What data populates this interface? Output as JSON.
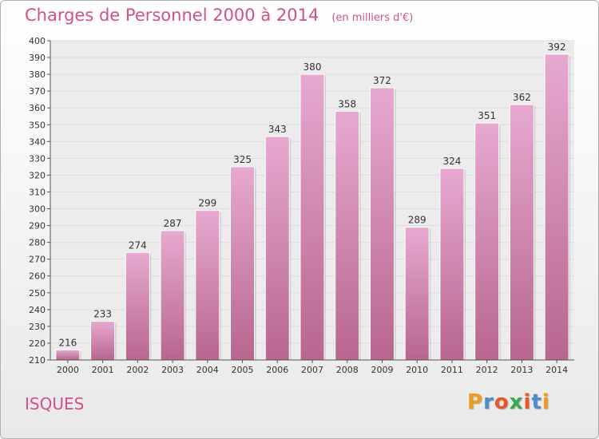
{
  "header": {
    "title": "Charges de Personnel 2000 à 2014",
    "subtitle": "(en milliers d'€)"
  },
  "commune": "ISQUES",
  "logo": {
    "letters": [
      "P",
      "r",
      "o",
      "x",
      "i",
      "t",
      "i"
    ],
    "colors": [
      "#f29a18",
      "#4a8ccc",
      "#e8562a",
      "#3aa84a",
      "#e8562a",
      "#4a8ccc",
      "#f29a18"
    ]
  },
  "colors": {
    "bar_top": "#e7a9d0",
    "bar_bottom": "#b7668f",
    "text": "#d24f8a",
    "grid": "#dddddd"
  },
  "chart_data": {
    "type": "bar",
    "title": "Charges de Personnel 2000 à 2014",
    "subtitle": "(en milliers d'€)",
    "categories": [
      "2000",
      "2001",
      "2002",
      "2003",
      "2004",
      "2005",
      "2006",
      "2007",
      "2008",
      "2009",
      "2010",
      "2011",
      "2012",
      "2013",
      "2014"
    ],
    "values": [
      216,
      233,
      274,
      287,
      299,
      325,
      343,
      380,
      358,
      372,
      289,
      324,
      351,
      362,
      392
    ],
    "ylim": [
      210,
      400
    ],
    "ytick_step": 10,
    "grid": true,
    "data_labels": true
  }
}
